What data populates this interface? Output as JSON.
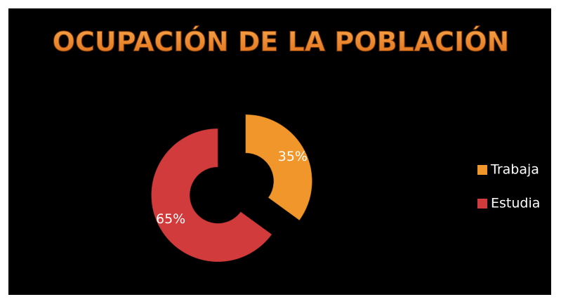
{
  "chart_data": {
    "type": "donut",
    "title": "OCUPACIÓN DE LA POBLACIÓN",
    "categories": [
      "Trabaja",
      "Estudia"
    ],
    "values": [
      35,
      65
    ],
    "value_labels": [
      "35%",
      "65%"
    ],
    "colors": [
      "#f0962a",
      "#d23b3b"
    ],
    "legend": "right"
  }
}
